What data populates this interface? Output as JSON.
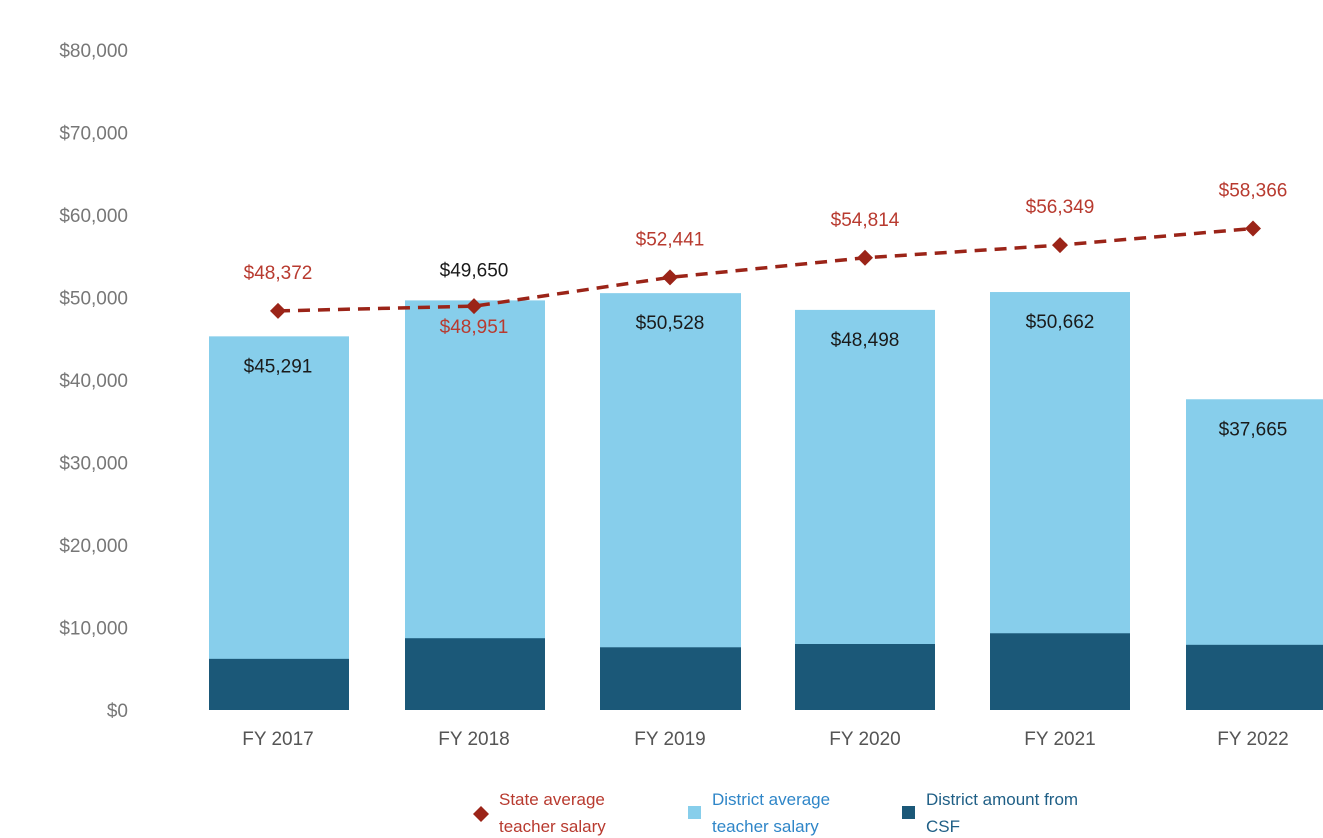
{
  "chart_data": {
    "type": "bar",
    "title": "",
    "xlabel": "",
    "ylabel": "",
    "categories": [
      "FY 2017",
      "FY 2018",
      "FY 2019",
      "FY 2020",
      "FY 2021",
      "FY 2022"
    ],
    "ylim": [
      0,
      80000
    ],
    "y_ticks": [
      0,
      10000,
      20000,
      30000,
      40000,
      50000,
      60000,
      70000,
      80000
    ],
    "y_tick_labels": [
      "$0",
      "$10,000",
      "$20,000",
      "$30,000",
      "$40,000",
      "$50,000",
      "$60,000",
      "$70,000",
      "$80,000"
    ],
    "grid": false,
    "legend_position": "bottom",
    "series": [
      {
        "name": "District average teacher salary",
        "kind": "bar",
        "color": "#87ceeb",
        "values": [
          45291,
          49650,
          50528,
          48498,
          50662,
          37665
        ],
        "labels": [
          "$45,291",
          "$49,650",
          "$50,528",
          "$48,498",
          "$50,662",
          "$37,665"
        ]
      },
      {
        "name": "District amount from CSF",
        "kind": "bar-overlay",
        "color": "#1b5878",
        "values": [
          6200,
          8700,
          7600,
          8000,
          9300,
          7900
        ]
      },
      {
        "name": "State average teacher salary",
        "kind": "line-dashed",
        "marker": "diamond",
        "color": "#9b2418",
        "values": [
          48372,
          48951,
          52441,
          54814,
          56349,
          58366
        ],
        "labels": [
          "$48,372",
          "$48,951",
          "$52,441",
          "$54,814",
          "$56,349",
          "$58,366"
        ]
      }
    ],
    "legend": [
      {
        "line1": "State average",
        "line2": "teacher salary",
        "color": "#9b2418",
        "text_color": "#b83a2f",
        "symbol": "diamond"
      },
      {
        "line1": "District average",
        "line2": "teacher salary",
        "color": "#87ceeb",
        "text_color": "#2f86c8",
        "symbol": "square"
      },
      {
        "line1": "District amount from",
        "line2": "CSF",
        "color": "#1b5878",
        "text_color": "#1f5f86",
        "symbol": "square"
      }
    ]
  }
}
